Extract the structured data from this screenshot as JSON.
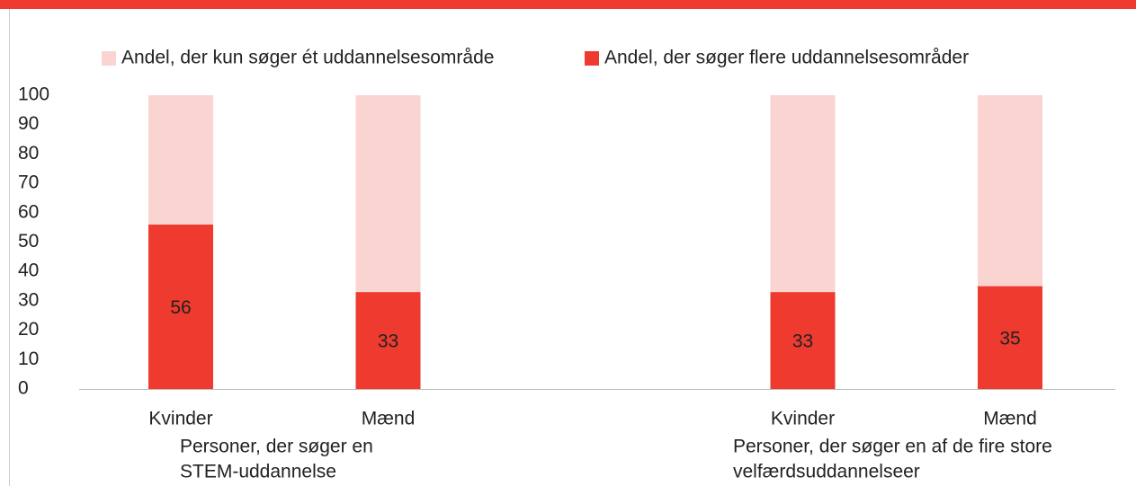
{
  "chart_data": {
    "type": "stacked_bar",
    "categories": [
      "Kvinder",
      "Mænd",
      null,
      "Kvinder",
      "Mænd"
    ],
    "series": [
      {
        "name": "Andel, der kun søger ét uddannelsesområde",
        "color": "#fad4d1",
        "values": [
          44,
          67,
          null,
          67,
          65
        ]
      },
      {
        "name": "Andel, der søger flere uddannelsesområder",
        "color": "#ee3a2f",
        "values": [
          56,
          33,
          null,
          33,
          35
        ]
      }
    ],
    "group_labels": [
      [
        "Personer, der søger en",
        "STEM-uddannelse"
      ],
      [
        "Personer, der søger en af de fire store",
        "velfærdsuddannelseer"
      ]
    ],
    "ylim": [
      0,
      100
    ],
    "yticks": [
      0,
      10,
      20,
      30,
      40,
      50,
      60,
      70,
      80,
      90,
      100
    ],
    "legend": "top",
    "grid": false
  }
}
